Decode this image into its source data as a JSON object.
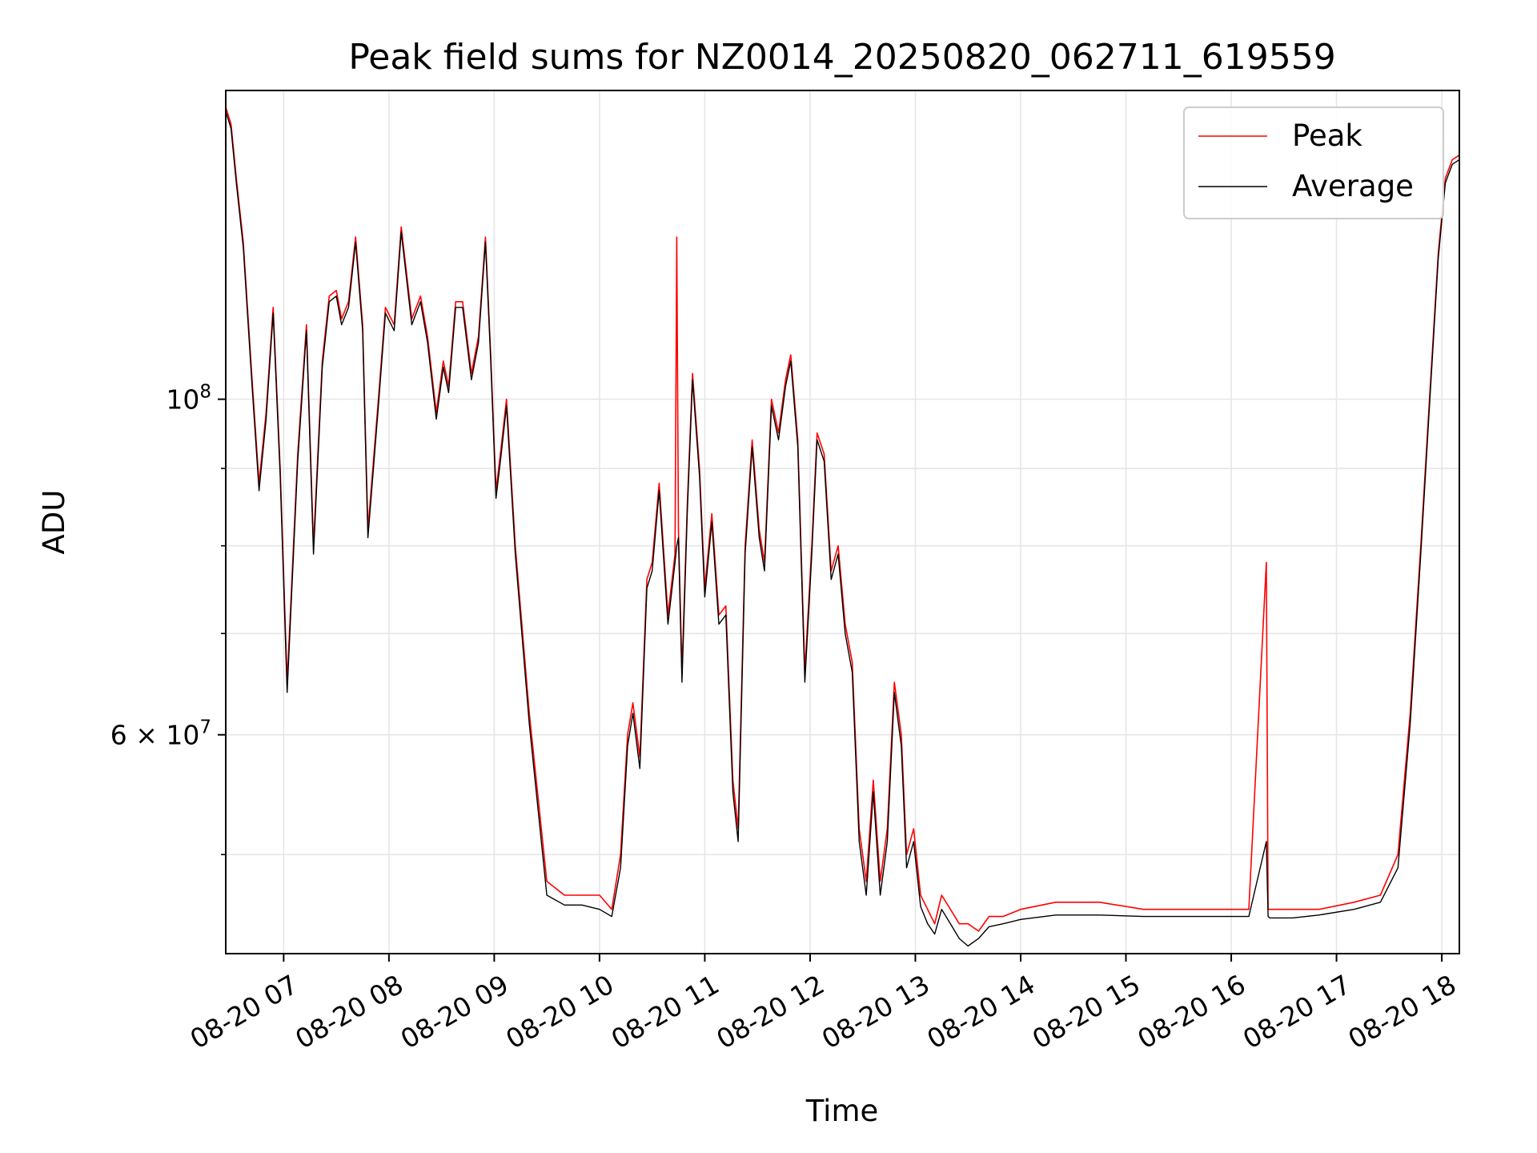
{
  "chart_data": {
    "type": "line",
    "title": "Peak field sums for NZ0014_20250820_062711_619559",
    "xlabel": "Time",
    "ylabel": "ADU",
    "y_scale": "log",
    "ylim": [
      43000000,
      160000000
    ],
    "xlim": [
      "2025-08-20 06:27",
      "2025-08-20 18:10"
    ],
    "grid": true,
    "legend_position": "top-right",
    "x_tick_labels": [
      "08-20 07",
      "08-20 08",
      "08-20 09",
      "08-20 10",
      "08-20 11",
      "08-20 12",
      "08-20 13",
      "08-20 14",
      "08-20 15",
      "08-20 16",
      "08-20 17",
      "08-20 18"
    ],
    "x_ticks": [
      "2025-08-20 07:00",
      "2025-08-20 08:00",
      "2025-08-20 09:00",
      "2025-08-20 10:00",
      "2025-08-20 11:00",
      "2025-08-20 12:00",
      "2025-08-20 13:00",
      "2025-08-20 14:00",
      "2025-08-20 15:00",
      "2025-08-20 16:00",
      "2025-08-20 17:00",
      "2025-08-20 18:00"
    ],
    "y_ticks": [
      {
        "value": 100000000,
        "label_base": "10",
        "label_exp": "8"
      },
      {
        "value": 60000000,
        "label_base": "6 × 10",
        "label_exp": "7"
      }
    ],
    "y_minor_ticks": [
      50000000,
      70000000,
      80000000,
      90000000
    ],
    "series": [
      {
        "name": "Peak",
        "color": "#ff0000",
        "x": [
          "2025-08-20 06:27",
          "2025-08-20 06:30",
          "2025-08-20 06:33",
          "2025-08-20 06:37",
          "2025-08-20 06:42",
          "2025-08-20 06:46",
          "2025-08-20 06:50",
          "2025-08-20 06:54",
          "2025-08-20 06:58",
          "2025-08-20 07:02",
          "2025-08-20 07:08",
          "2025-08-20 07:13",
          "2025-08-20 07:17",
          "2025-08-20 07:22",
          "2025-08-20 07:26",
          "2025-08-20 07:30",
          "2025-08-20 07:33",
          "2025-08-20 07:37",
          "2025-08-20 07:41",
          "2025-08-20 07:45",
          "2025-08-20 07:48",
          "2025-08-20 07:54",
          "2025-08-20 07:58",
          "2025-08-20 08:03",
          "2025-08-20 08:07",
          "2025-08-20 08:13",
          "2025-08-20 08:18",
          "2025-08-20 08:22",
          "2025-08-20 08:27",
          "2025-08-20 08:31",
          "2025-08-20 08:34",
          "2025-08-20 08:38",
          "2025-08-20 08:42",
          "2025-08-20 08:47",
          "2025-08-20 08:51",
          "2025-08-20 08:55",
          "2025-08-20 08:58",
          "2025-08-20 09:01",
          "2025-08-20 09:04",
          "2025-08-20 09:07",
          "2025-08-20 09:12",
          "2025-08-20 09:20",
          "2025-08-20 09:30",
          "2025-08-20 09:40",
          "2025-08-20 09:50",
          "2025-08-20 10:00",
          "2025-08-20 10:07",
          "2025-08-20 10:12",
          "2025-08-20 10:16",
          "2025-08-20 10:19",
          "2025-08-20 10:23",
          "2025-08-20 10:27",
          "2025-08-20 10:30",
          "2025-08-20 10:34",
          "2025-08-20 10:39",
          "2025-08-20 10:43",
          "2025-08-20 10:44",
          "2025-08-20 10:45",
          "2025-08-20 10:47",
          "2025-08-20 10:50",
          "2025-08-20 10:53",
          "2025-08-20 10:57",
          "2025-08-20 11:00",
          "2025-08-20 11:04",
          "2025-08-20 11:08",
          "2025-08-20 11:12",
          "2025-08-20 11:16",
          "2025-08-20 11:19",
          "2025-08-20 11:23",
          "2025-08-20 11:27",
          "2025-08-20 11:31",
          "2025-08-20 11:34",
          "2025-08-20 11:38",
          "2025-08-20 11:42",
          "2025-08-20 11:46",
          "2025-08-20 11:49",
          "2025-08-20 11:53",
          "2025-08-20 11:57",
          "2025-08-20 12:01",
          "2025-08-20 12:04",
          "2025-08-20 12:08",
          "2025-08-20 12:12",
          "2025-08-20 12:16",
          "2025-08-20 12:20",
          "2025-08-20 12:24",
          "2025-08-20 12:28",
          "2025-08-20 12:32",
          "2025-08-20 12:36",
          "2025-08-20 12:40",
          "2025-08-20 12:44",
          "2025-08-20 12:48",
          "2025-08-20 12:52",
          "2025-08-20 12:55",
          "2025-08-20 12:59",
          "2025-08-20 13:03",
          "2025-08-20 13:07",
          "2025-08-20 13:11",
          "2025-08-20 13:15",
          "2025-08-20 13:20",
          "2025-08-20 13:25",
          "2025-08-20 13:30",
          "2025-08-20 13:36",
          "2025-08-20 13:42",
          "2025-08-20 13:50",
          "2025-08-20 14:00",
          "2025-08-20 14:20",
          "2025-08-20 14:45",
          "2025-08-20 15:10",
          "2025-08-20 15:30",
          "2025-08-20 15:50",
          "2025-08-20 16:10",
          "2025-08-20 16:20",
          "2025-08-20 16:21",
          "2025-08-20 16:22",
          "2025-08-20 16:35",
          "2025-08-20 16:50",
          "2025-08-20 17:10",
          "2025-08-20 17:25",
          "2025-08-20 17:35",
          "2025-08-20 17:42",
          "2025-08-20 17:48",
          "2025-08-20 17:53",
          "2025-08-20 17:58",
          "2025-08-20 18:02",
          "2025-08-20 18:06",
          "2025-08-20 18:10"
        ],
        "values": [
          156000000,
          152000000,
          140000000,
          127000000,
          103000000,
          88000000,
          98000000,
          115000000,
          90000000,
          65000000,
          92000000,
          112000000,
          80000000,
          106000000,
          117000000,
          118000000,
          113000000,
          116000000,
          128000000,
          112000000,
          82000000,
          100000000,
          115000000,
          112000000,
          130000000,
          113000000,
          117000000,
          110000000,
          98000000,
          106000000,
          102000000,
          116000000,
          116000000,
          104000000,
          110000000,
          128000000,
          107000000,
          87000000,
          93000000,
          100000000,
          80000000,
          62000000,
          48000000,
          47000000,
          47000000,
          47000000,
          46000000,
          50000000,
          60000000,
          63000000,
          58000000,
          76000000,
          78000000,
          88000000,
          72000000,
          79000000,
          128000000,
          82000000,
          66000000,
          85000000,
          104000000,
          90000000,
          75000000,
          84000000,
          72000000,
          73000000,
          56000000,
          52000000,
          80000000,
          94000000,
          82000000,
          78000000,
          100000000,
          95000000,
          103000000,
          107000000,
          94000000,
          66000000,
          80000000,
          95000000,
          92000000,
          77000000,
          80000000,
          71000000,
          67000000,
          52000000,
          48000000,
          56000000,
          48000000,
          52000000,
          65000000,
          60000000,
          50000000,
          52000000,
          47000000,
          46000000,
          45000000,
          47000000,
          46000000,
          45000000,
          45000000,
          44500000,
          45500000,
          45500000,
          46000000,
          46500000,
          46500000,
          46000000,
          46000000,
          46000000,
          46000000,
          78000000,
          46000000,
          46000000,
          46000000,
          46000000,
          46500000,
          47000000,
          50000000,
          62000000,
          80000000,
          100000000,
          125000000,
          140000000,
          144000000,
          145000000
        ]
      },
      {
        "name": "Average",
        "color": "#000000",
        "x": [
          "2025-08-20 06:27",
          "2025-08-20 06:30",
          "2025-08-20 06:33",
          "2025-08-20 06:37",
          "2025-08-20 06:42",
          "2025-08-20 06:46",
          "2025-08-20 06:50",
          "2025-08-20 06:54",
          "2025-08-20 06:58",
          "2025-08-20 07:02",
          "2025-08-20 07:08",
          "2025-08-20 07:13",
          "2025-08-20 07:17",
          "2025-08-20 07:22",
          "2025-08-20 07:26",
          "2025-08-20 07:30",
          "2025-08-20 07:33",
          "2025-08-20 07:37",
          "2025-08-20 07:41",
          "2025-08-20 07:45",
          "2025-08-20 07:48",
          "2025-08-20 07:54",
          "2025-08-20 07:58",
          "2025-08-20 08:03",
          "2025-08-20 08:07",
          "2025-08-20 08:13",
          "2025-08-20 08:18",
          "2025-08-20 08:22",
          "2025-08-20 08:27",
          "2025-08-20 08:31",
          "2025-08-20 08:34",
          "2025-08-20 08:38",
          "2025-08-20 08:42",
          "2025-08-20 08:47",
          "2025-08-20 08:51",
          "2025-08-20 08:55",
          "2025-08-20 08:58",
          "2025-08-20 09:01",
          "2025-08-20 09:04",
          "2025-08-20 09:07",
          "2025-08-20 09:12",
          "2025-08-20 09:20",
          "2025-08-20 09:30",
          "2025-08-20 09:40",
          "2025-08-20 09:50",
          "2025-08-20 10:00",
          "2025-08-20 10:07",
          "2025-08-20 10:12",
          "2025-08-20 10:16",
          "2025-08-20 10:19",
          "2025-08-20 10:23",
          "2025-08-20 10:27",
          "2025-08-20 10:30",
          "2025-08-20 10:34",
          "2025-08-20 10:39",
          "2025-08-20 10:43",
          "2025-08-20 10:44",
          "2025-08-20 10:45",
          "2025-08-20 10:47",
          "2025-08-20 10:50",
          "2025-08-20 10:53",
          "2025-08-20 10:57",
          "2025-08-20 11:00",
          "2025-08-20 11:04",
          "2025-08-20 11:08",
          "2025-08-20 11:12",
          "2025-08-20 11:16",
          "2025-08-20 11:19",
          "2025-08-20 11:23",
          "2025-08-20 11:27",
          "2025-08-20 11:31",
          "2025-08-20 11:34",
          "2025-08-20 11:38",
          "2025-08-20 11:42",
          "2025-08-20 11:46",
          "2025-08-20 11:49",
          "2025-08-20 11:53",
          "2025-08-20 11:57",
          "2025-08-20 12:01",
          "2025-08-20 12:04",
          "2025-08-20 12:08",
          "2025-08-20 12:12",
          "2025-08-20 12:16",
          "2025-08-20 12:20",
          "2025-08-20 12:24",
          "2025-08-20 12:28",
          "2025-08-20 12:32",
          "2025-08-20 12:36",
          "2025-08-20 12:40",
          "2025-08-20 12:44",
          "2025-08-20 12:48",
          "2025-08-20 12:52",
          "2025-08-20 12:55",
          "2025-08-20 12:59",
          "2025-08-20 13:03",
          "2025-08-20 13:07",
          "2025-08-20 13:11",
          "2025-08-20 13:15",
          "2025-08-20 13:20",
          "2025-08-20 13:25",
          "2025-08-20 13:30",
          "2025-08-20 13:36",
          "2025-08-20 13:42",
          "2025-08-20 13:50",
          "2025-08-20 14:00",
          "2025-08-20 14:20",
          "2025-08-20 14:45",
          "2025-08-20 15:10",
          "2025-08-20 15:30",
          "2025-08-20 15:50",
          "2025-08-20 16:10",
          "2025-08-20 16:20",
          "2025-08-20 16:21",
          "2025-08-20 16:22",
          "2025-08-20 16:35",
          "2025-08-20 16:50",
          "2025-08-20 17:10",
          "2025-08-20 17:25",
          "2025-08-20 17:35",
          "2025-08-20 17:42",
          "2025-08-20 17:48",
          "2025-08-20 17:53",
          "2025-08-20 17:58",
          "2025-08-20 18:02",
          "2025-08-20 18:06",
          "2025-08-20 18:10"
        ],
        "values": [
          155000000,
          151000000,
          139000000,
          126000000,
          102000000,
          87000000,
          97000000,
          114000000,
          89000000,
          64000000,
          91000000,
          111000000,
          79000000,
          105000000,
          116000000,
          117000000,
          112000000,
          115000000,
          127000000,
          111000000,
          81000000,
          99000000,
          114000000,
          111000000,
          129000000,
          112000000,
          116000000,
          109000000,
          97000000,
          105000000,
          101000000,
          115000000,
          115000000,
          103000000,
          109000000,
          127000000,
          106000000,
          86000000,
          92000000,
          99000000,
          79000000,
          61000000,
          47000000,
          46300000,
          46300000,
          46000000,
          45500000,
          49000000,
          59000000,
          62000000,
          57000000,
          75000000,
          77000000,
          87000000,
          71000000,
          78000000,
          80000000,
          81000000,
          65000000,
          84000000,
          103000000,
          89000000,
          74000000,
          83000000,
          71000000,
          72000000,
          55000000,
          51000000,
          79000000,
          93000000,
          81000000,
          77000000,
          99000000,
          94000000,
          102000000,
          106000000,
          93000000,
          65000000,
          79000000,
          94000000,
          91000000,
          76000000,
          79000000,
          70000000,
          66000000,
          51000000,
          47000000,
          55000000,
          47000000,
          51000000,
          64000000,
          59000000,
          49000000,
          51000000,
          46200000,
          45000000,
          44300000,
          46000000,
          45000000,
          44000000,
          43500000,
          44000000,
          44800000,
          45000000,
          45300000,
          45600000,
          45600000,
          45500000,
          45500000,
          45500000,
          45500000,
          51000000,
          45500000,
          45400000,
          45400000,
          45600000,
          46000000,
          46500000,
          49000000,
          61000000,
          79000000,
          99000000,
          124000000,
          139000000,
          143000000,
          144000000
        ]
      }
    ]
  }
}
